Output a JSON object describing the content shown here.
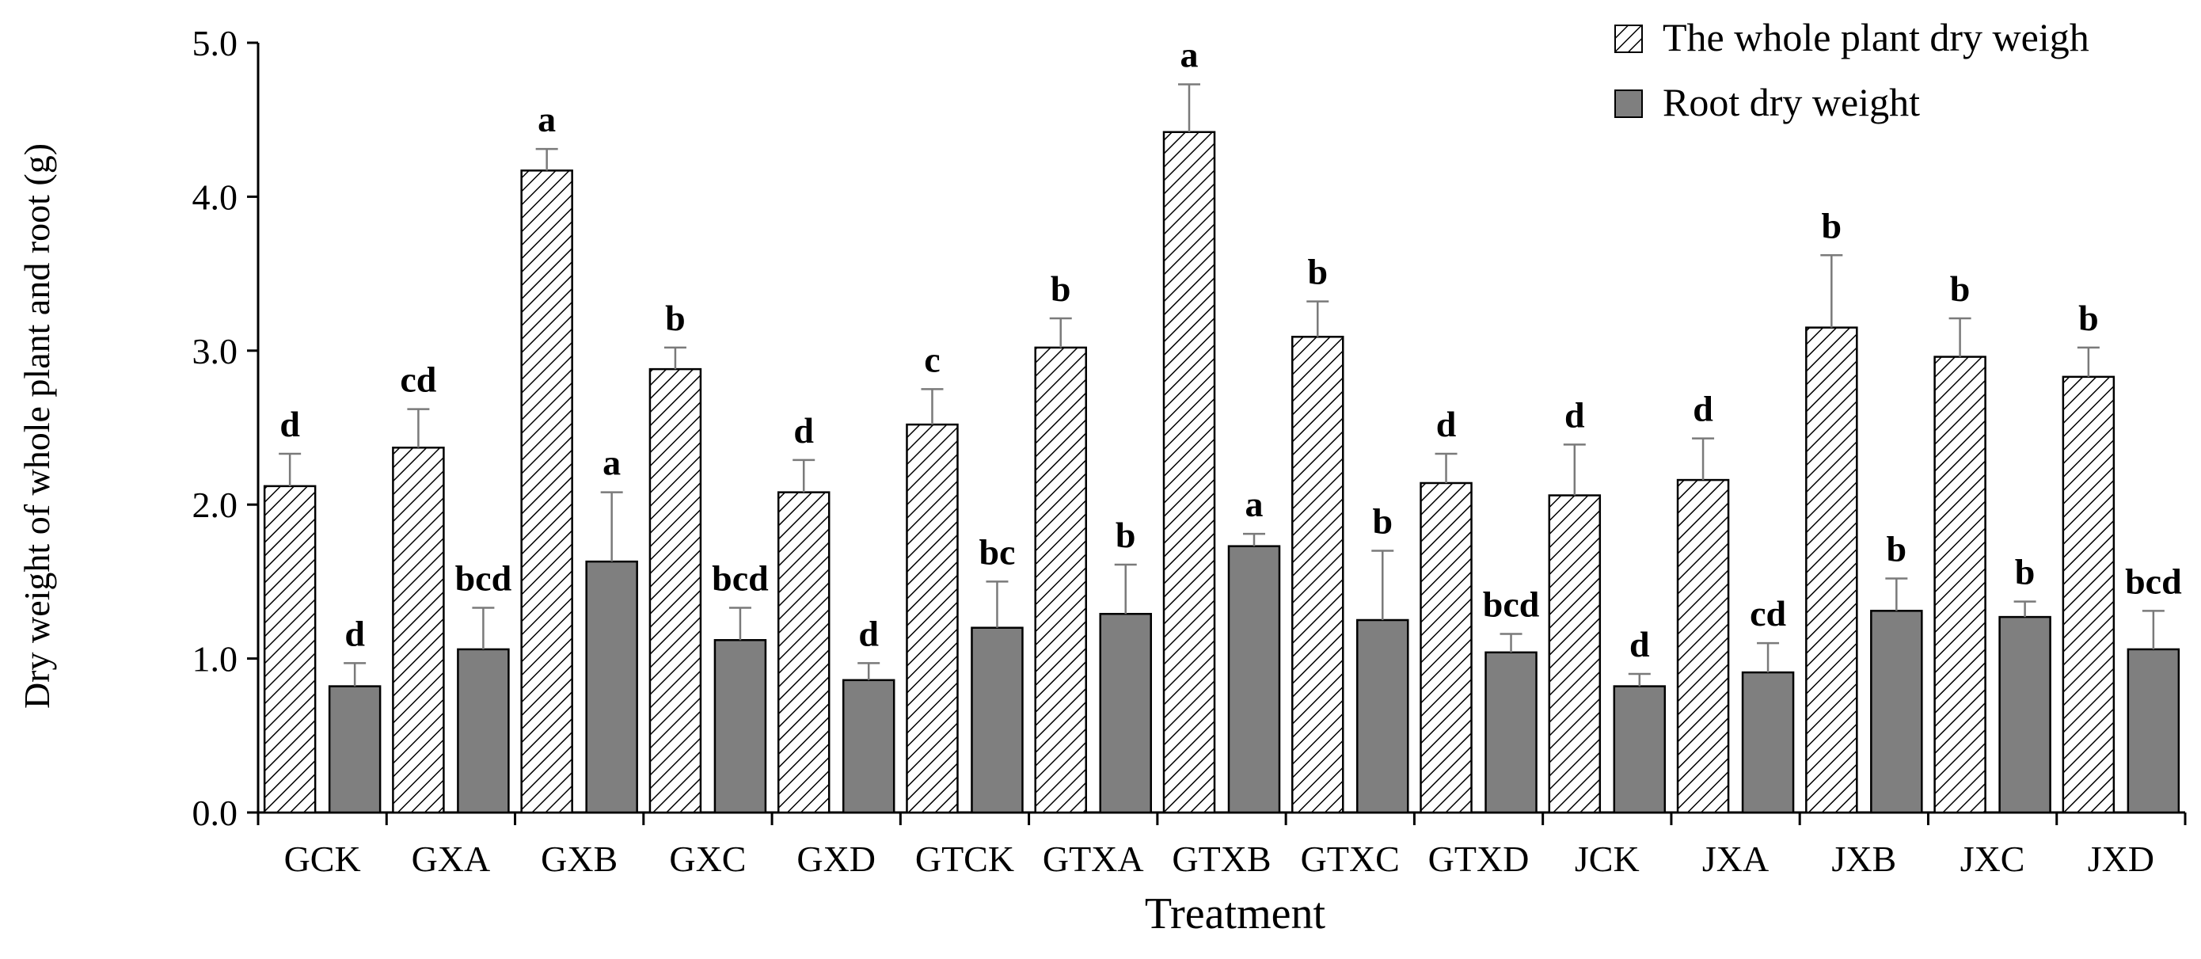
{
  "chart_data": {
    "type": "bar",
    "title": "",
    "xlabel": "Treatment",
    "ylabel": "Dry weight of whole plant and root (g)",
    "ylim": [
      0,
      5
    ],
    "yticks": [
      "0.0",
      "1.0",
      "2.0",
      "3.0",
      "4.0",
      "5.0"
    ],
    "grid": false,
    "legend_position": "top-right",
    "categories": [
      "GCK",
      "GXA",
      "GXB",
      "GXC",
      "GXD",
      "GTCK",
      "GTXA",
      "GTXB",
      "GTXC",
      "GTXD",
      "JCK",
      "JXA",
      "JXB",
      "JXC",
      "JXD"
    ],
    "series": [
      {
        "name": "The whole plant dry weigh",
        "pattern": "hatched",
        "color": "#ffffff",
        "values": [
          2.12,
          2.37,
          4.17,
          2.88,
          2.08,
          2.52,
          3.02,
          4.42,
          3.09,
          2.14,
          2.06,
          2.16,
          3.15,
          2.96,
          2.83
        ],
        "errors": [
          0.21,
          0.25,
          0.14,
          0.14,
          0.21,
          0.23,
          0.19,
          0.31,
          0.23,
          0.19,
          0.33,
          0.27,
          0.47,
          0.25,
          0.19
        ],
        "significance": [
          "d",
          "cd",
          "a",
          "b",
          "d",
          "c",
          "b",
          "a",
          "b",
          "d",
          "d",
          "d",
          "b",
          "b",
          "b"
        ]
      },
      {
        "name": "Root dry weight",
        "pattern": "solid",
        "color": "#7f7f7f",
        "values": [
          0.82,
          1.06,
          1.63,
          1.12,
          0.86,
          1.2,
          1.29,
          1.73,
          1.25,
          1.04,
          0.82,
          0.91,
          1.31,
          1.27,
          1.06
        ],
        "errors": [
          0.15,
          0.27,
          0.45,
          0.21,
          0.11,
          0.3,
          0.32,
          0.08,
          0.45,
          0.12,
          0.08,
          0.19,
          0.21,
          0.1,
          0.25
        ],
        "significance": [
          "d",
          "bcd",
          "a",
          "bcd",
          "d",
          "bc",
          "b",
          "a",
          "b",
          "bcd",
          "d",
          "cd",
          "b",
          "b",
          "bcd"
        ]
      }
    ]
  }
}
